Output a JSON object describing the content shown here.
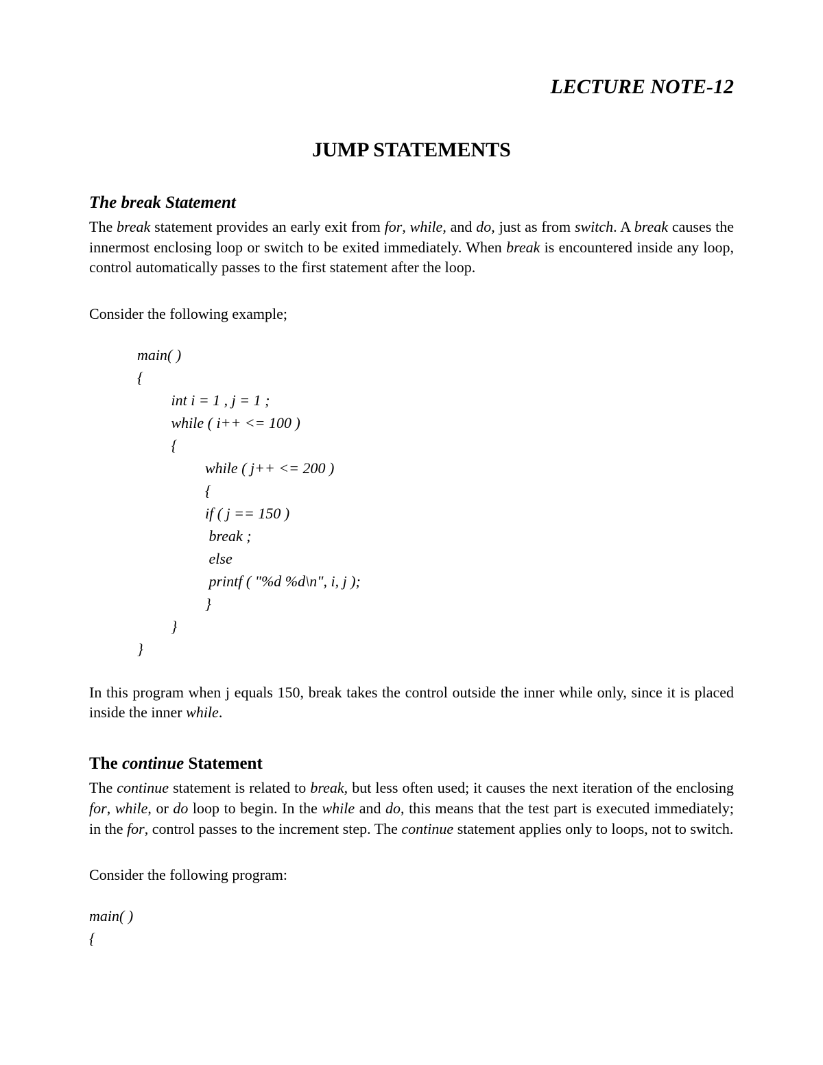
{
  "header": {
    "lecture_label": "LECTURE NOTE-12"
  },
  "title": "JUMP STATEMENTS",
  "sections": {
    "break": {
      "heading": "The break Statement",
      "para1_parts": [
        {
          "t": "The ",
          "i": false
        },
        {
          "t": "break",
          "i": true
        },
        {
          "t": " statement provides an early exit from ",
          "i": false
        },
        {
          "t": "for",
          "i": true
        },
        {
          "t": ", ",
          "i": false
        },
        {
          "t": "while",
          "i": true
        },
        {
          "t": ", and ",
          "i": false
        },
        {
          "t": "do",
          "i": true
        },
        {
          "t": ", just as from ",
          "i": false
        },
        {
          "t": "switch",
          "i": true
        },
        {
          "t": ". A ",
          "i": false
        },
        {
          "t": "break",
          "i": true
        },
        {
          "t": " causes the innermost enclosing loop or switch to be exited immediately. When ",
          "i": false
        },
        {
          "t": "break",
          "i": true
        },
        {
          "t": " is encountered inside any loop, control automatically passes to the first statement after the loop.",
          "i": false
        }
      ],
      "consider_line": "Consider the following example;",
      "code": "main( )\n{\n         int i = 1 , j = 1 ;\n         while ( i++ <= 100 )\n         {\n                  while ( j++ <= 200 )\n                  {\n                  if ( j == 150 )\n                   break ;\n                   else\n                   printf ( \"%d %d\\n\", i, j );\n                  }\n         }\n}",
      "para2_parts": [
        {
          "t": "In this program when j equals 150, break takes the control outside the inner while only, since it is placed inside the inner ",
          "i": false
        },
        {
          "t": "while",
          "i": true
        },
        {
          "t": ".",
          "i": false
        }
      ]
    },
    "continue": {
      "heading_pre": "The ",
      "heading_ital": "continue",
      "heading_post": " Statement",
      "para1_parts": [
        {
          "t": "The ",
          "i": false
        },
        {
          "t": "continue",
          "i": true
        },
        {
          "t": " statement is related to ",
          "i": false
        },
        {
          "t": "break",
          "i": true
        },
        {
          "t": ", but less often used; it causes the next iteration of the enclosing ",
          "i": false
        },
        {
          "t": "for",
          "i": true
        },
        {
          "t": ", ",
          "i": false
        },
        {
          "t": "while",
          "i": true
        },
        {
          "t": ", or ",
          "i": false
        },
        {
          "t": "do",
          "i": true
        },
        {
          "t": " loop to begin. In the ",
          "i": false
        },
        {
          "t": "while",
          "i": true
        },
        {
          "t": " and ",
          "i": false
        },
        {
          "t": "do",
          "i": true
        },
        {
          "t": ", this means that the test part is executed immediately; in the ",
          "i": false
        },
        {
          "t": "for",
          "i": true
        },
        {
          "t": ", control passes to the increment step. The ",
          "i": false
        },
        {
          "t": "continue",
          "i": true
        },
        {
          "t": " statement applies only to loops, not to switch.",
          "i": false
        }
      ],
      "consider_line": "Consider the following program:",
      "code": "main( )\n{"
    }
  }
}
